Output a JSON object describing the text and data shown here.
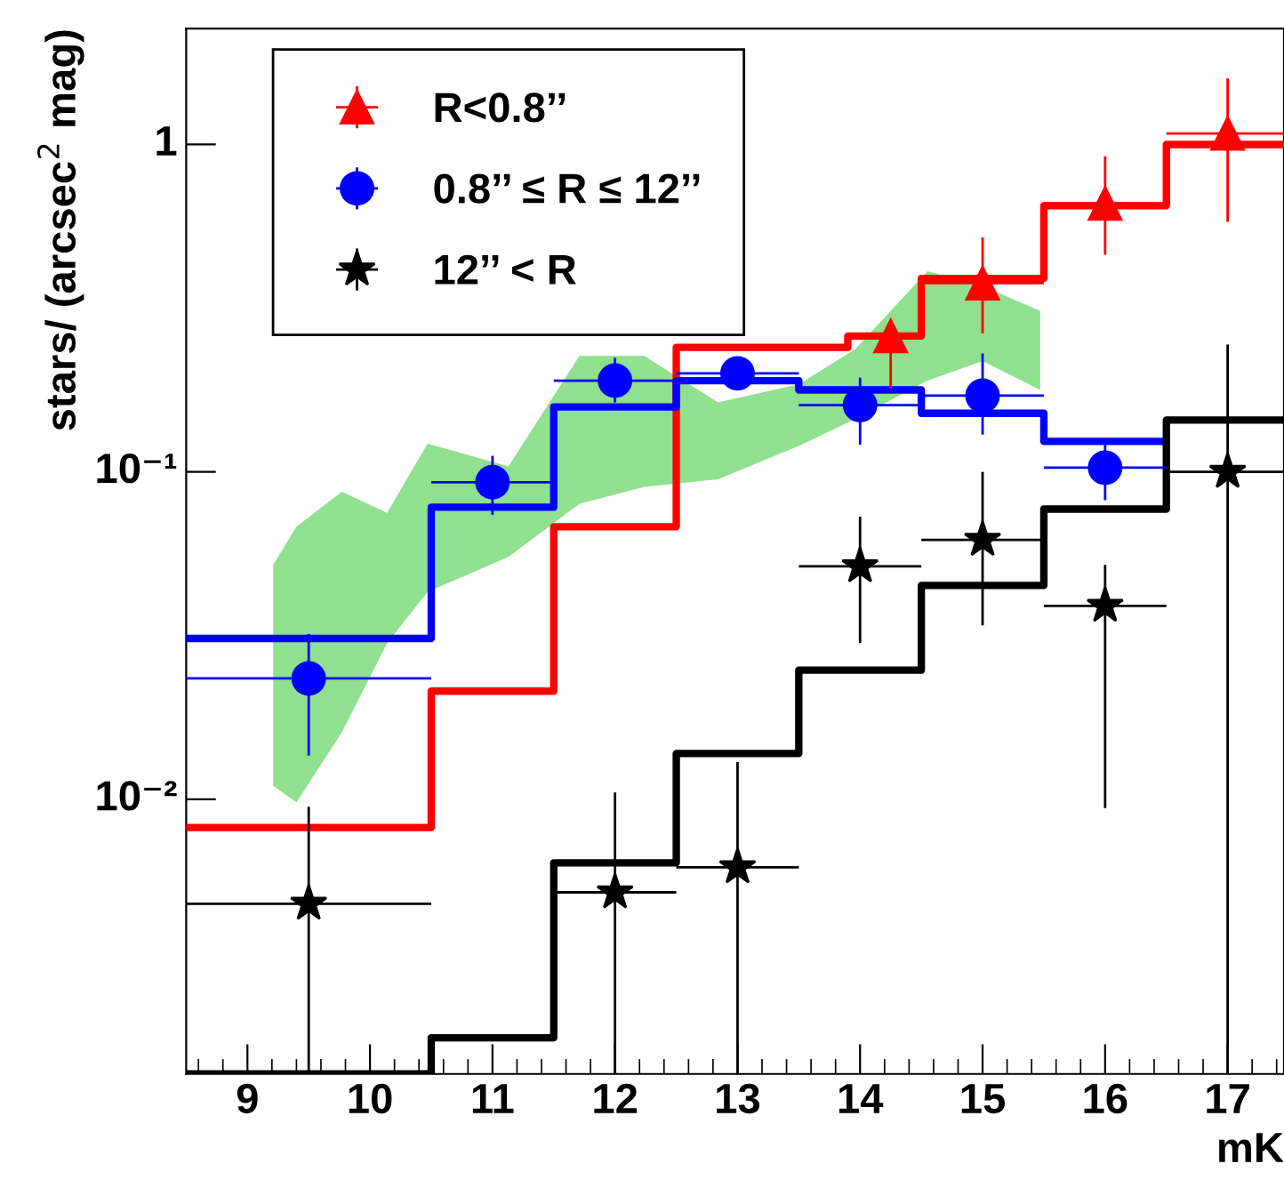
{
  "chart_data": {
    "type": "step",
    "xlabel": "mK",
    "ylabel": "stars/ (arcsec$^{2}$ mag)",
    "log": "y",
    "xlim": [
      8.5,
      17.46
    ],
    "ylim": [
      0.00145,
      2.26
    ],
    "xticks": [
      9,
      10,
      11,
      12,
      13,
      14,
      15,
      16,
      17
    ],
    "yticks": [
      {
        "value": 0.01,
        "label": "10⁻²"
      },
      {
        "value": 0.1,
        "label": "10⁻¹"
      },
      1
    ],
    "grid": false,
    "legend": "top left",
    "series": [
      {
        "type": "area",
        "color": "#8fe08f",
        "x": [
          9.21,
          9.4,
          9.77,
          10.14,
          10.47,
          11.13,
          11.71,
          12.24,
          12.84,
          13.5,
          13.96,
          14.55,
          15.0,
          15.47
        ],
        "values": [
          null,
          null,
          null,
          null,
          null,
          null,
          null,
          null,
          null,
          null,
          null,
          null,
          null,
          null
        ],
        "upper": [
          0.052,
          0.068,
          0.087,
          0.075,
          0.122,
          0.104,
          0.226,
          0.226,
          0.163,
          0.185,
          0.237,
          0.41,
          0.37,
          0.31
        ],
        "lower": [
          0.011,
          0.0098,
          0.016,
          0.03,
          0.043,
          0.055,
          0.08,
          0.09,
          0.095,
          0.12,
          0.145,
          0.19,
          0.218,
          0.178
        ]
      },
      {
        "color": "#ff0000",
        "x": [
          8.5,
          10.5,
          11.5,
          12.5,
          13.9,
          14.5,
          15.5,
          16.5,
          17.46
        ],
        "values": [
          0.0082,
          0.0214,
          0.068,
          0.24,
          0.26,
          0.39,
          0.65,
          1.0,
          1.0
        ]
      },
      {
        "color": "#0000ff",
        "x": [
          8.5,
          10.5,
          11.5,
          12.5,
          13.5,
          14.5,
          15.5,
          16.5
        ],
        "values": [
          0.031,
          0.078,
          0.158,
          0.19,
          0.178,
          0.151,
          0.124,
          0.124
        ]
      },
      {
        "color": "#000000",
        "x": [
          8.5,
          10.5,
          11.5,
          12.5,
          13.5,
          14.5,
          15.5,
          16.5,
          17.46
        ],
        "values": [
          0.00145,
          0.00187,
          0.0064,
          0.0138,
          0.0248,
          0.045,
          0.077,
          0.144,
          0.144
        ]
      },
      {
        "type": "scatter",
        "name": "R<0.8’’",
        "color": "#ff0000",
        "marker": "triangle",
        "x": [
          14.25,
          15,
          16,
          17
        ],
        "values": [
          0.26,
          0.377,
          0.66,
          1.08
        ],
        "errors": [
          [
            0.18,
            0.29
          ],
          [
            0.265,
            0.52
          ],
          [
            0.46,
            0.92
          ],
          [
            0.58,
            1.59
          ]
        ],
        "xerrors": [
          [
            14,
            14.5
          ],
          [
            14.5,
            15.5
          ],
          [
            15.5,
            16.5
          ],
          [
            16.5,
            17.46
          ]
        ]
      },
      {
        "type": "scatter",
        "name": "0.8’’ ≤ R ≤ 12’’",
        "color": "#0000ff",
        "marker": "circle",
        "x": [
          9.5,
          11,
          12,
          13,
          14,
          15,
          16
        ],
        "values": [
          0.0234,
          0.093,
          0.19,
          0.2,
          0.16,
          0.171,
          0.103
        ],
        "errors": [
          [
            0.0136,
            0.032
          ],
          [
            0.074,
            0.112
          ],
          [
            0.163,
            0.223
          ],
          [
            0.18,
            0.22
          ],
          [
            0.121,
            0.194
          ],
          [
            0.13,
            0.23
          ],
          [
            0.082,
            0.126
          ]
        ],
        "xerrors": [
          [
            8.5,
            10.5
          ],
          [
            10.5,
            11.5
          ],
          [
            11.5,
            12.5
          ],
          [
            12.5,
            13.5
          ],
          [
            13.5,
            14.5
          ],
          [
            14.5,
            15.5
          ],
          [
            15.5,
            16.5
          ]
        ]
      },
      {
        "type": "scatter",
        "name": "12’’ < R",
        "color": "#000000",
        "marker": "star",
        "x": [
          9.5,
          12,
          13,
          14,
          15,
          16,
          17
        ],
        "values": [
          0.0048,
          0.0052,
          0.0062,
          0.0515,
          0.062,
          0.039,
          0.1
        ],
        "errors": [
          [
            0.00145,
            0.0095
          ],
          [
            0.00145,
            0.0105
          ],
          [
            0.00145,
            0.013
          ],
          [
            0.03,
            0.073
          ],
          [
            0.034,
            0.1
          ],
          [
            0.0094,
            0.052
          ],
          [
            0.00145,
            0.245
          ]
        ],
        "xerrors": [
          [
            8.5,
            10.5
          ],
          [
            11.5,
            12.5
          ],
          [
            12.5,
            13.5
          ],
          [
            13.5,
            14.5
          ],
          [
            14.5,
            15.5
          ],
          [
            15.5,
            16.5
          ],
          [
            16.5,
            17.46
          ]
        ]
      }
    ]
  }
}
